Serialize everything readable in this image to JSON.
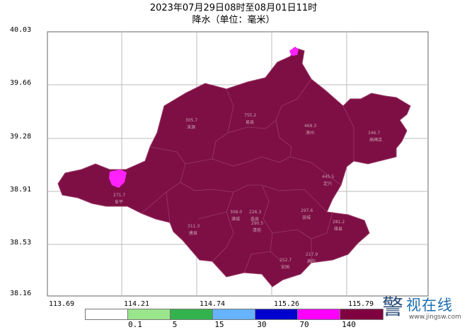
{
  "title": {
    "line1": "2023年07月29日08时至08月01日11时",
    "line2": "降水（单位：毫米）"
  },
  "axes": {
    "y_ticks": [
      "40.03",
      "39.66",
      "39.28",
      "38.91",
      "38.53",
      "38.16"
    ],
    "x_ticks": [
      "113.69",
      "114.21",
      "114.74",
      "115.26",
      "115.79"
    ]
  },
  "legend": {
    "colors": [
      "#ffffff",
      "#99e68c",
      "#33b34d",
      "#66b3ff",
      "#0000cc",
      "#ff00ff",
      "#800040"
    ],
    "labels": [
      "0.1",
      "5",
      "15",
      "30",
      "70",
      "140"
    ]
  },
  "map": {
    "fill_color": "#7d0f45",
    "highlight_color": "#ff22ff",
    "boundary_color": "#9a3a66",
    "grid_color": "#bbbbbb"
  },
  "stations": [
    {
      "value": "305.7",
      "name": "涞源"
    },
    {
      "value": "755.2",
      "name": "易县"
    },
    {
      "value": "469.3",
      "name": "涿州"
    },
    {
      "value": "445.5",
      "name": "定兴"
    },
    {
      "value": "346.7",
      "name": "高碑店"
    },
    {
      "value": "271.7",
      "name": "阜平"
    },
    {
      "value": "297.6",
      "name": "容城"
    },
    {
      "value": "311.3",
      "name": "唐县"
    },
    {
      "value": "308.0",
      "name": "满城"
    },
    {
      "value": "290.5",
      "name": "清苑"
    },
    {
      "value": "252.7",
      "name": "安国"
    },
    {
      "value": "226.3",
      "name": "蠡县"
    },
    {
      "value": "281.2",
      "name": "雄县"
    },
    {
      "value": "217.9",
      "name": "高阳"
    }
  ],
  "watermark": {
    "icon_glyph": "警",
    "name": "视在线",
    "url": "www.jingsw.com"
  }
}
